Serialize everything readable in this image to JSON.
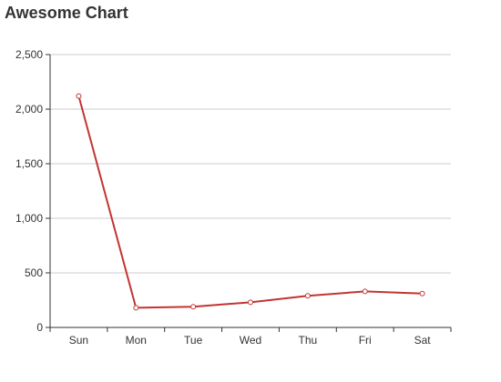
{
  "chart_data": {
    "type": "line",
    "title": "Awesome Chart",
    "categories": [
      "Sun",
      "Mon",
      "Tue",
      "Wed",
      "Thu",
      "Fri",
      "Sat"
    ],
    "series": [
      {
        "values": [
          2120,
          180,
          190,
          230,
          290,
          330,
          310
        ]
      }
    ],
    "ylim": [
      0,
      2500
    ],
    "yticks": [
      0,
      500,
      1000,
      1500,
      2000,
      2500
    ],
    "ytick_labels": [
      "0",
      "500",
      "1,000",
      "1,500",
      "2,000",
      "2,500"
    ],
    "xlabel": "",
    "ylabel": "",
    "grid": true,
    "legend": "none",
    "colors": {
      "line": "#c23531",
      "grid": "#cccccc",
      "axis": "#333333",
      "text": "#333333"
    }
  }
}
